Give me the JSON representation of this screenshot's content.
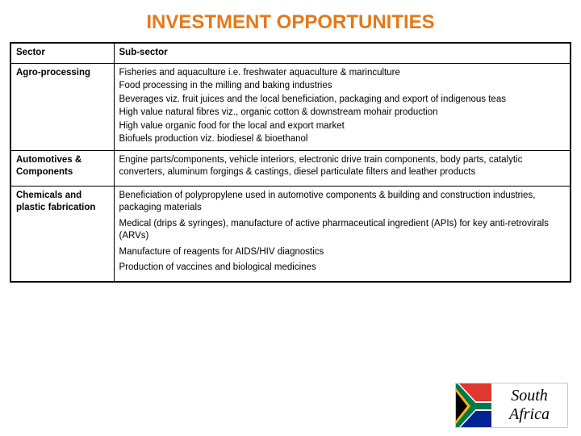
{
  "title": {
    "text": "INVESTMENT OPPORTUNITIES",
    "color": "#e77817",
    "fontsize": 24
  },
  "table": {
    "header": {
      "col1": "Sector",
      "col2": "Sub-sector"
    },
    "rows": [
      {
        "sector": "Agro-processing",
        "lines": [
          "Fisheries and aquaculture i.e. freshwater aquaculture & marinculture",
          "Food processing in the milling and baking industries",
          "Beverages viz. fruit juices and the local beneficiation, packaging and export of indigenous teas",
          "High value natural fibres viz., organic cotton & downstream mohair production",
          "High value organic food for the local and export market",
          "Biofuels production viz. biodiesel & bioethanol"
        ],
        "spaced": false
      },
      {
        "sector": "Automotives & Components",
        "lines": [
          "Engine parts/components, vehicle interiors, electronic drive train components, body parts, catalytic converters, aluminum forgings & castings, diesel particulate filters and leather products"
        ],
        "spaced": true
      },
      {
        "sector": "Chemicals and plastic fabrication",
        "lines": [
          "Beneficiation of polypropylene used in automotive components & building and construction industries, packaging materials",
          "Medical (drips & syringes), manufacture of active pharmaceutical ingredient (APIs) for key anti-retrovirals (ARVs)",
          "Manufacture of reagents for AIDS/HIV diagnostics",
          "Production of vaccines and biological medicines"
        ],
        "spaced": true
      }
    ],
    "border_color": "#000000",
    "text_color": "#000000"
  },
  "logo": {
    "brand_text": "South Africa",
    "flag_colors": {
      "red": "#de3831",
      "blue": "#002395",
      "green": "#007a4d",
      "yellow": "#ffb612",
      "black": "#000000",
      "white": "#ffffff"
    }
  }
}
